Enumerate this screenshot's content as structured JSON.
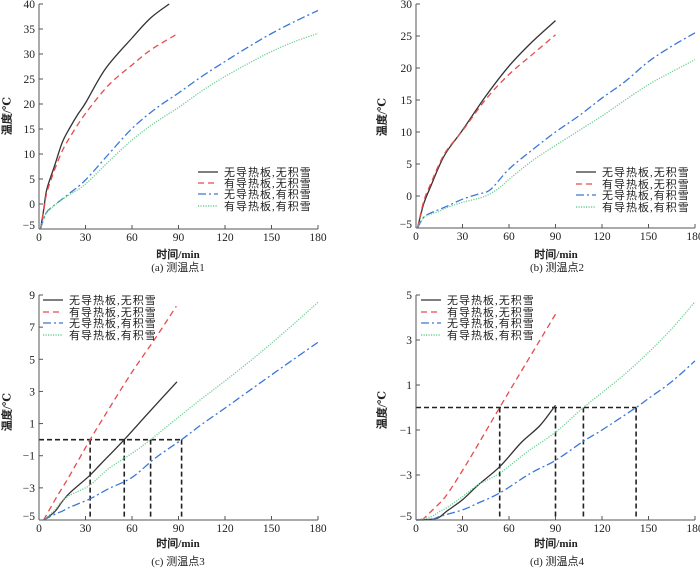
{
  "chart_data": [
    {
      "type": "line",
      "panel": "a",
      "caption": "(a)  测温点1",
      "xlabel": "时间/min",
      "ylabel": "温度/℃",
      "xlim": [
        0,
        180
      ],
      "ylim": [
        -5,
        40
      ],
      "xticks": [
        0,
        30,
        60,
        90,
        120,
        150,
        180
      ],
      "xtick_labels": [
        "0",
        "30",
        "60",
        "90",
        "120",
        "150",
        "180"
      ],
      "yticks": [
        -5,
        0,
        5,
        10,
        15,
        20,
        25,
        30,
        35,
        40
      ],
      "ytick_labels": [
        "−5",
        "0",
        "5",
        "10",
        "15",
        "20",
        "25",
        "30",
        "35",
        "40"
      ],
      "grid": false,
      "legend_position": "bottom-right",
      "series": [
        {
          "name": "无导热板,无积雪",
          "color": "#333333",
          "style": "solid",
          "points": [
            [
              1,
              -5
            ],
            [
              3,
              -1.2
            ],
            [
              5,
              2.9
            ],
            [
              10,
              7.6
            ],
            [
              15,
              12.3
            ],
            [
              20,
              15.3
            ],
            [
              25,
              17.9
            ],
            [
              30,
              20.2
            ],
            [
              43,
              27.1
            ],
            [
              60,
              33.2
            ],
            [
              72,
              37.2
            ],
            [
              84,
              40
            ]
          ]
        },
        {
          "name": "有导热板,无积雪",
          "color": "#e84b4b",
          "style": "dashed",
          "points": [
            [
              1,
              -5
            ],
            [
              3,
              -1.5
            ],
            [
              5,
              2.2
            ],
            [
              10,
              6.8
            ],
            [
              15,
              10.6
            ],
            [
              20,
              13.4
            ],
            [
              30,
              18.1
            ],
            [
              45,
              23.8
            ],
            [
              60,
              27.8
            ],
            [
              72,
              30.8
            ],
            [
              88,
              33.8
            ]
          ]
        },
        {
          "name": "无导热板,有积雪",
          "color": "#3a78d8",
          "style": "dashdot",
          "points": [
            [
              1,
              -5
            ],
            [
              3,
              -3
            ],
            [
              5,
              -1.6
            ],
            [
              10,
              -0.2
            ],
            [
              15,
              1.0
            ],
            [
              20,
              2.2
            ],
            [
              30,
              4.8
            ],
            [
              45,
              10
            ],
            [
              60,
              15.1
            ],
            [
              75,
              19
            ],
            [
              90,
              22.2
            ],
            [
              105,
              25.5
            ],
            [
              120,
              28.5
            ],
            [
              135,
              31.4
            ],
            [
              150,
              34.1
            ],
            [
              165,
              36.5
            ],
            [
              180,
              38.7
            ]
          ]
        },
        {
          "name": "有导热板,有积雪",
          "color": "#6fcf95",
          "style": "dotted",
          "points": [
            [
              1,
              -5
            ],
            [
              3,
              -3
            ],
            [
              5,
              -1.7
            ],
            [
              10,
              -0.3
            ],
            [
              15,
              0.9
            ],
            [
              20,
              1.9
            ],
            [
              30,
              4
            ],
            [
              45,
              8.5
            ],
            [
              60,
              12.8
            ],
            [
              75,
              16.3
            ],
            [
              90,
              19.3
            ],
            [
              105,
              22.6
            ],
            [
              120,
              25.5
            ],
            [
              135,
              28.1
            ],
            [
              150,
              30.5
            ],
            [
              165,
              32.5
            ],
            [
              180,
              34.1
            ]
          ]
        }
      ]
    },
    {
      "type": "line",
      "panel": "b",
      "caption": "(b)  测温点2",
      "xlabel": "时间/min",
      "ylabel": "温度/℃",
      "xlim": [
        0,
        180
      ],
      "ylim": [
        -5,
        30
      ],
      "xticks": [
        0,
        30,
        60,
        90,
        120,
        150,
        180
      ],
      "xtick_labels": [
        "0",
        "30",
        "60",
        "90",
        "120",
        "150",
        "180"
      ],
      "yticks": [
        -5,
        0,
        5,
        10,
        15,
        20,
        25,
        30
      ],
      "ytick_labels": [
        "−5",
        "0",
        "5",
        "10",
        "15",
        "20",
        "25",
        "30"
      ],
      "grid": false,
      "legend_position": "bottom-right",
      "series": [
        {
          "name": "无导热板,无积雪",
          "color": "#333333",
          "style": "solid",
          "points": [
            [
              1,
              -5
            ],
            [
              5,
              -1.2
            ],
            [
              10,
              1.8
            ],
            [
              15,
              4.7
            ],
            [
              20,
              7
            ],
            [
              30,
              10.3
            ],
            [
              45,
              15.6
            ],
            [
              60,
              20.3
            ],
            [
              75,
              24.1
            ],
            [
              90,
              27.4
            ]
          ]
        },
        {
          "name": "有导热板,无积雪",
          "color": "#e84b4b",
          "style": "dashed",
          "points": [
            [
              1,
              -5
            ],
            [
              5,
              -0.8
            ],
            [
              10,
              2.2
            ],
            [
              15,
              5
            ],
            [
              20,
              7.2
            ],
            [
              30,
              10.2
            ],
            [
              45,
              15.1
            ],
            [
              60,
              19
            ],
            [
              75,
              22.1
            ],
            [
              90,
              25.2
            ]
          ]
        },
        {
          "name": "无导热板,有积雪",
          "color": "#3a78d8",
          "style": "dashdot",
          "points": [
            [
              1,
              -5
            ],
            [
              5,
              -3.3
            ],
            [
              10,
              -2.6
            ],
            [
              15,
              -2.1
            ],
            [
              20,
              -1.6
            ],
            [
              30,
              -0.5
            ],
            [
              40,
              0.3
            ],
            [
              48,
              1
            ],
            [
              60,
              4.2
            ],
            [
              75,
              7.2
            ],
            [
              90,
              10
            ],
            [
              105,
              12.5
            ],
            [
              120,
              15.3
            ],
            [
              135,
              17.9
            ],
            [
              150,
              21
            ],
            [
              165,
              23.4
            ],
            [
              180,
              25.5
            ]
          ]
        },
        {
          "name": "有导热板,有积雪",
          "color": "#6fcf95",
          "style": "dotted",
          "points": [
            [
              1,
              -5
            ],
            [
              5,
              -3.4
            ],
            [
              10,
              -2.8
            ],
            [
              15,
              -2.4
            ],
            [
              20,
              -1.8
            ],
            [
              30,
              -1
            ],
            [
              45,
              0
            ],
            [
              55,
              1.5
            ],
            [
              60,
              2.6
            ],
            [
              75,
              5.5
            ],
            [
              90,
              7.9
            ],
            [
              105,
              10.2
            ],
            [
              120,
              12.5
            ],
            [
              135,
              15
            ],
            [
              150,
              17.4
            ],
            [
              165,
              19.4
            ],
            [
              180,
              21.3
            ]
          ]
        }
      ]
    },
    {
      "type": "line",
      "panel": "c",
      "caption": "(c)  测温点3",
      "xlabel": "时间/min",
      "ylabel": "温度/℃",
      "xlim": [
        0,
        180
      ],
      "ylim": [
        -5,
        9
      ],
      "xticks": [
        0,
        30,
        60,
        90,
        120,
        150,
        180
      ],
      "xtick_labels": [
        "0",
        "30",
        "60",
        "90",
        "120",
        "150",
        "180"
      ],
      "yticks": [
        -5,
        -3,
        -1,
        1,
        3,
        5,
        7,
        9
      ],
      "ytick_labels": [
        "−5",
        "−3",
        "−1",
        "1",
        "3",
        "5",
        "7",
        "9"
      ],
      "grid": false,
      "legend_position": "top-left",
      "reference": {
        "y": 0,
        "x_crossings": [
          33,
          55,
          72,
          92
        ]
      },
      "series": [
        {
          "name": "无导热板,无积雪",
          "color": "#333333",
          "style": "solid",
          "points": [
            [
              3,
              -5
            ],
            [
              10,
              -4.5
            ],
            [
              15,
              -3.85
            ],
            [
              20,
              -3.3
            ],
            [
              32.5,
              -2.25
            ],
            [
              40,
              -1.5
            ],
            [
              55,
              0
            ],
            [
              70,
              1.6
            ],
            [
              89,
              3.6
            ]
          ]
        },
        {
          "name": "有导热板,无积雪",
          "color": "#e84b4b",
          "style": "dashed",
          "points": [
            [
              3,
              -5
            ],
            [
              10,
              -3.8
            ],
            [
              15,
              -3
            ],
            [
              20,
              -2.2
            ],
            [
              33,
              0
            ],
            [
              45,
              1.9
            ],
            [
              60,
              4.2
            ],
            [
              75,
              6.3
            ],
            [
              88.6,
              8.3
            ]
          ]
        },
        {
          "name": "无导热板,有积雪",
          "color": "#3a78d8",
          "style": "dashdot",
          "points": [
            [
              3,
              -5
            ],
            [
              10,
              -4.65
            ],
            [
              15,
              -4.45
            ],
            [
              20,
              -4.2
            ],
            [
              32.5,
              -3.7
            ],
            [
              45,
              -3.05
            ],
            [
              60,
              -2.35
            ],
            [
              75,
              -1.15
            ],
            [
              92,
              0
            ],
            [
              105,
              0.95
            ],
            [
              120,
              1.96
            ],
            [
              135,
              3
            ],
            [
              150,
              4.03
            ],
            [
              165,
              5.05
            ],
            [
              180,
              6.06
            ]
          ]
        },
        {
          "name": "有导热板,有积雪",
          "color": "#6fcf95",
          "style": "dotted",
          "points": [
            [
              3,
              -5
            ],
            [
              10,
              -4.4
            ],
            [
              15,
              -3.8
            ],
            [
              20,
              -3.45
            ],
            [
              32.5,
              -2.85
            ],
            [
              45,
              -1.8
            ],
            [
              60,
              -0.85
            ],
            [
              72,
              0
            ],
            [
              90,
              1.4
            ],
            [
              105,
              2.55
            ],
            [
              120,
              3.65
            ],
            [
              135,
              4.8
            ],
            [
              150,
              6
            ],
            [
              165,
              7.25
            ],
            [
              180,
              8.55
            ]
          ]
        }
      ]
    },
    {
      "type": "line",
      "panel": "d",
      "caption": "(d)  测温点4",
      "xlabel": "时间/min",
      "ylabel": "温度/℃",
      "xlim": [
        0,
        180
      ],
      "ylim": [
        -5,
        5
      ],
      "xticks": [
        0,
        30,
        60,
        90,
        120,
        150,
        180
      ],
      "xtick_labels": [
        "0",
        "30",
        "60",
        "90",
        "120",
        "150",
        "180"
      ],
      "yticks": [
        -5,
        -3,
        -1,
        1,
        3,
        5
      ],
      "ytick_labels": [
        "−5",
        "−3",
        "−1",
        "1",
        "3",
        "5"
      ],
      "grid": false,
      "legend_position": "top-left",
      "reference": {
        "y": 0,
        "x_crossings": [
          54,
          90,
          108,
          142
        ]
      },
      "series": [
        {
          "name": "无导热板,无积雪",
          "color": "#333333",
          "style": "solid",
          "points": [
            [
              0,
              -5
            ],
            [
              10,
              -4.97
            ],
            [
              15,
              -4.88
            ],
            [
              20,
              -4.6
            ],
            [
              30,
              -4.1
            ],
            [
              40,
              -3.45
            ],
            [
              54,
              -2.63
            ],
            [
              68,
              -1.55
            ],
            [
              80,
              -0.8
            ],
            [
              90,
              0.1
            ]
          ]
        },
        {
          "name": "有导热板,无积雪",
          "color": "#e84b4b",
          "style": "dashed",
          "points": [
            [
              4,
              -5
            ],
            [
              10,
              -4.6
            ],
            [
              19,
              -3.96
            ],
            [
              30,
              -2.8
            ],
            [
              40,
              -1.65
            ],
            [
              54,
              0
            ],
            [
              70,
              1.85
            ],
            [
              91,
              4.26
            ]
          ]
        },
        {
          "name": "无导热板,有积雪",
          "color": "#3a78d8",
          "style": "dashdot",
          "points": [
            [
              0,
              -5
            ],
            [
              10,
              -4.98
            ],
            [
              15,
              -4.85
            ],
            [
              30,
              -4.55
            ],
            [
              40,
              -4.25
            ],
            [
              54,
              -3.8
            ],
            [
              74,
              -2.92
            ],
            [
              90,
              -2.35
            ],
            [
              108,
              -1.5
            ],
            [
              120,
              -1.0
            ],
            [
              142,
              0
            ],
            [
              150,
              0.4
            ],
            [
              165,
              1.15
            ],
            [
              180,
              2.07
            ]
          ]
        },
        {
          "name": "有导热板,有积雪",
          "color": "#6fcf95",
          "style": "dotted",
          "points": [
            [
              0,
              -5
            ],
            [
              10,
              -4.85
            ],
            [
              15,
              -4.63
            ],
            [
              20,
              -4.45
            ],
            [
              30,
              -3.96
            ],
            [
              40,
              -3.44
            ],
            [
              54,
              -2.92
            ],
            [
              72,
              -1.96
            ],
            [
              90,
              -1.1
            ],
            [
              108,
              0
            ],
            [
              120,
              0.66
            ],
            [
              135,
              1.5
            ],
            [
              150,
              2.45
            ],
            [
              165,
              3.5
            ],
            [
              180,
              4.7
            ]
          ]
        }
      ]
    }
  ]
}
